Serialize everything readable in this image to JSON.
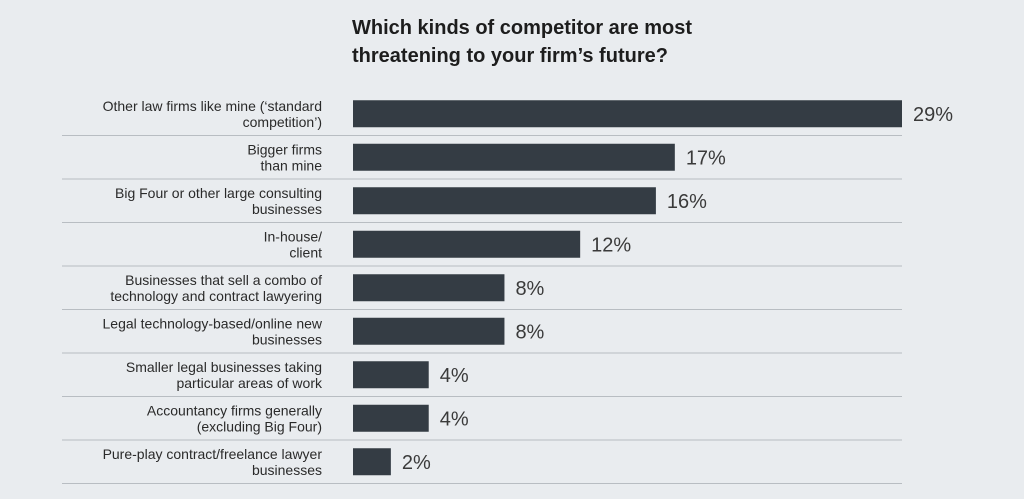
{
  "chart_data": {
    "type": "bar",
    "orientation": "horizontal",
    "title_lines": [
      "Which kinds of competitor are most",
      "threatening to your firm’s future?"
    ],
    "categories": [
      [
        "Other law firms like mine (‘standard",
        "competition’)"
      ],
      [
        "Bigger firms",
        "than mine"
      ],
      [
        "Big Four or other large consulting",
        "businesses"
      ],
      [
        "In-house/",
        "client"
      ],
      [
        "Businesses that sell a combo of",
        "technology and contract lawyering"
      ],
      [
        "Legal technology-based/online new",
        "businesses"
      ],
      [
        "Smaller legal businesses taking",
        "particular areas of work"
      ],
      [
        "Accountancy firms generally",
        "(excluding Big Four)"
      ],
      [
        "Pure-play contract/freelance lawyer",
        "businesses"
      ]
    ],
    "values": [
      29,
      17,
      16,
      12,
      8,
      8,
      4,
      4,
      2
    ],
    "value_labels": [
      "29%",
      "17%",
      "16%",
      "12%",
      "8%",
      "8%",
      "4%",
      "4%",
      "2%"
    ],
    "xlim": [
      0,
      29
    ],
    "grid": "horizontal separators",
    "colors": {
      "background": "#e9ecef",
      "bar": "#343c44",
      "separator": "#b8bdc2"
    }
  }
}
